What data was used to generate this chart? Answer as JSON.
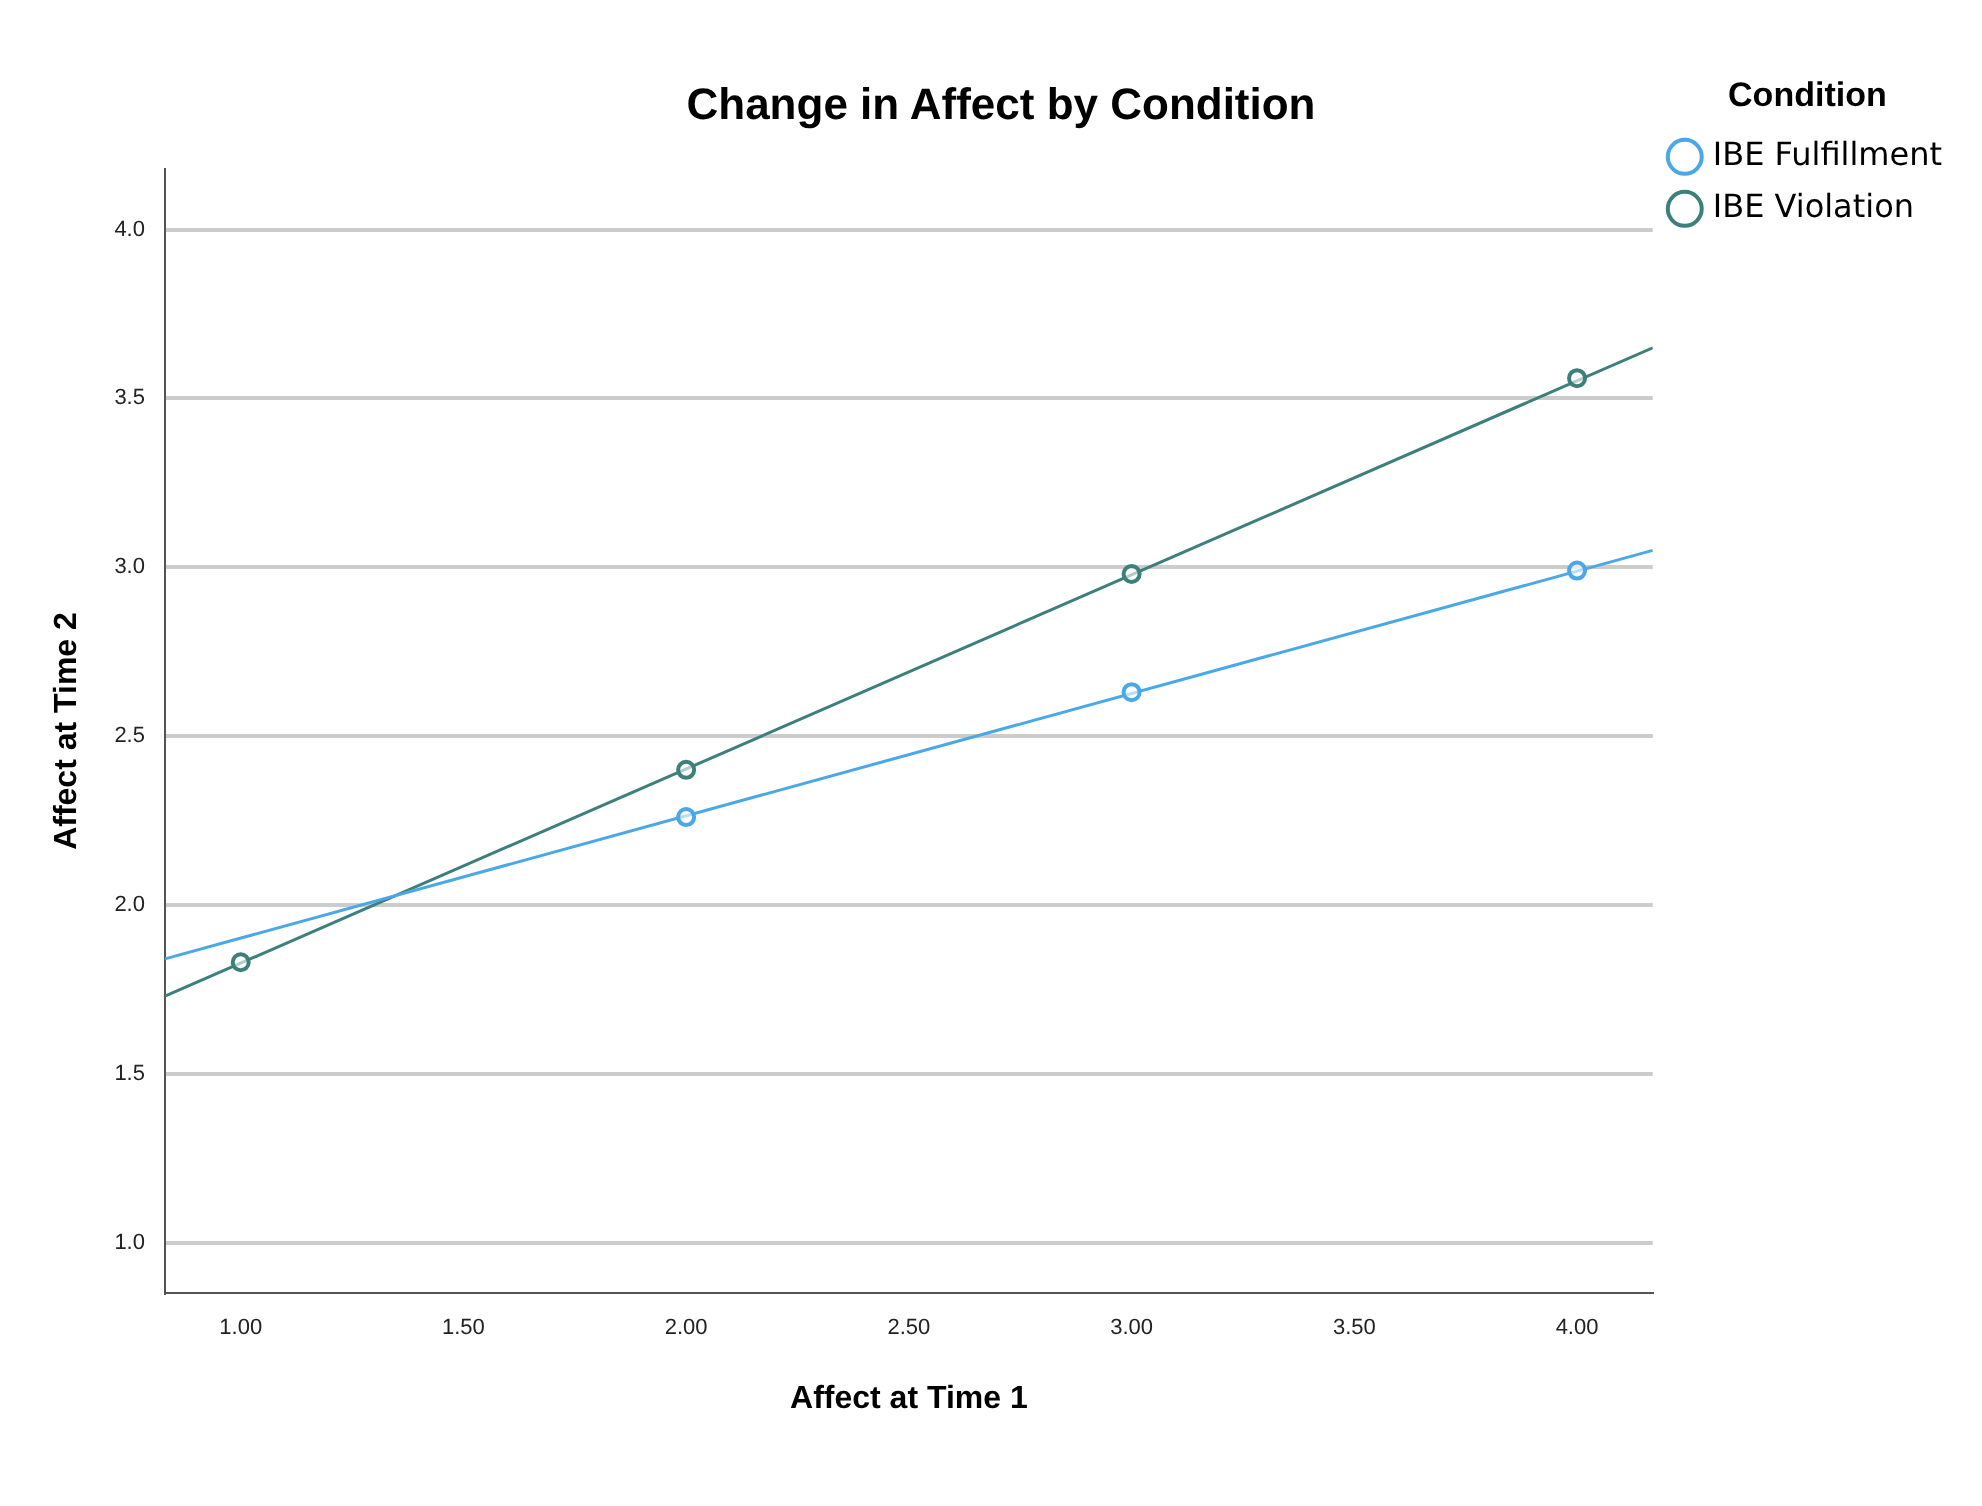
{
  "chart_data": {
    "type": "scatter",
    "title": "Change in Affect by Condition",
    "xlabel": "Affect at Time 1",
    "ylabel": "Affect at Time 2",
    "legend_title": "Condition",
    "xlim": [
      0.83,
      4.17
    ],
    "ylim": [
      0.85,
      4.18
    ],
    "xticks": [
      {
        "value": 1,
        "label": "1.00"
      },
      {
        "value": 1.5,
        "label": "1.50"
      },
      {
        "value": 2,
        "label": "2.00"
      },
      {
        "value": 2.5,
        "label": "2.50"
      },
      {
        "value": 3,
        "label": "3.00"
      },
      {
        "value": 3.5,
        "label": "3.50"
      },
      {
        "value": 4,
        "label": "4.00"
      }
    ],
    "yticks": [
      {
        "value": 1,
        "label": "1.0"
      },
      {
        "value": 1.5,
        "label": "1.5"
      },
      {
        "value": 2,
        "label": "2.0"
      },
      {
        "value": 2.5,
        "label": "2.5"
      },
      {
        "value": 3,
        "label": "3.0"
      },
      {
        "value": 3.5,
        "label": "3.5"
      },
      {
        "value": 4,
        "label": "4.0"
      }
    ],
    "grid": "y",
    "legend": "top right",
    "series": [
      {
        "name": "IBE Fulfillment",
        "marker": "circle",
        "color": "#4aa8e8",
        "x": [
          2,
          3,
          4
        ],
        "values": [
          2.26,
          2.63,
          2.99
        ]
      },
      {
        "name": "IBE Violation",
        "marker": "circle",
        "color": "#3d7f7a",
        "x": [
          1,
          2,
          3,
          4
        ],
        "values": [
          1.83,
          2.4,
          2.98,
          3.56
        ]
      },
      {
        "type": "line",
        "marker": "none",
        "color": "#4aa8e8",
        "x": [
          0.83,
          4.17
        ],
        "values": [
          1.84,
          3.05
        ]
      },
      {
        "type": "line",
        "marker": "none",
        "color": "#3d7f7a",
        "x": [
          0.83,
          4.17
        ],
        "values": [
          1.73,
          3.65
        ]
      }
    ]
  }
}
